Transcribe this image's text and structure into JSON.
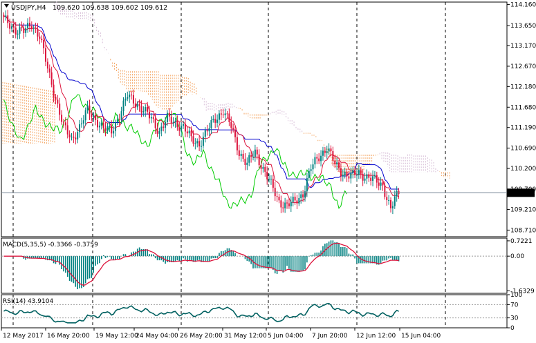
{
  "symbol_header": {
    "symbol": "USDJPY,H4",
    "ohlc": "109.620 109.638 109.602 109.612"
  },
  "main_chart": {
    "price_ticks": [
      "114.160",
      "113.650",
      "113.170",
      "112.670",
      "112.180",
      "111.680",
      "111.190",
      "110.690",
      "110.200",
      "109.700",
      "109.210",
      "108.710"
    ],
    "current_price": "109.612",
    "price_range": [
      108.55,
      114.22
    ],
    "colors": {
      "bull_candle": "#008080",
      "bear_candle": "#dc143c",
      "kijun": "#0000cd",
      "tenkan": "#dc143c",
      "chikou": "#00cc00",
      "cloud_bear": "#f4a460",
      "cloud_bull": "#d8bfd8",
      "price_line": "#708090"
    }
  },
  "macd_panel": {
    "label": "MACD(5,35,5) -0.3366 -0.3759",
    "ticks": [
      "0.7221",
      "0.00",
      "-1.6329"
    ],
    "range": [
      -1.75,
      0.85
    ],
    "colors": {
      "histogram": "#008080",
      "signal": "#dc143c"
    }
  },
  "rsi_panel": {
    "label": "RSI(14) 43.9104",
    "ticks": [
      "100",
      "70",
      "30",
      "0"
    ],
    "color": "#006060"
  },
  "time_axis": {
    "labels": [
      "12 May 2017",
      "16 May 20:00",
      "19 May 12:00",
      "24 May 04:00",
      "26 May 20:00",
      "31 May 12:00",
      "5 Jun 04:00",
      "7 Jun 20:00",
      "12 Jun 12:00",
      "15 Jun 04:00"
    ]
  }
}
